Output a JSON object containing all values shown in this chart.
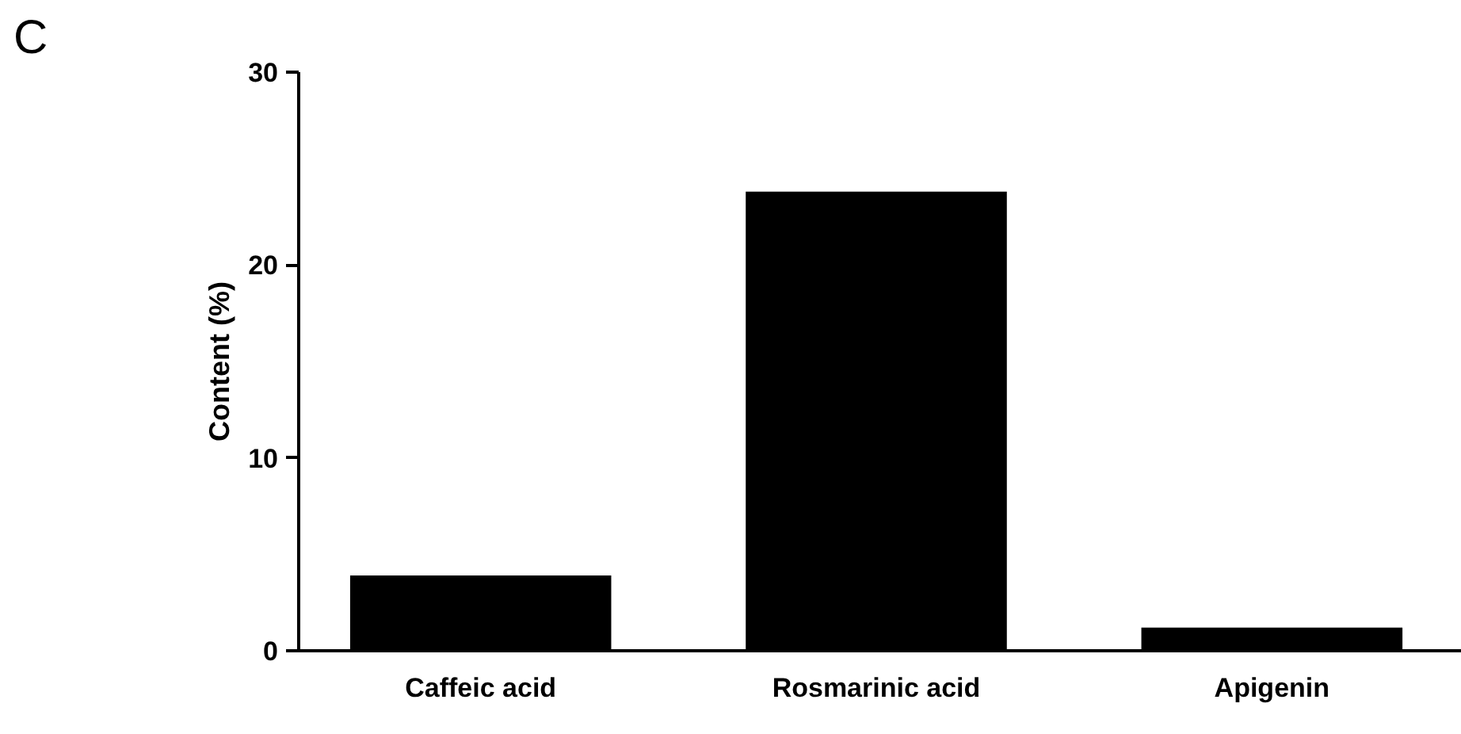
{
  "chart_data": {
    "type": "bar",
    "categories": [
      "Caffeic acid",
      "Rosmarinic acid",
      "Apigenin"
    ],
    "values": [
      3.9,
      23.8,
      1.2
    ],
    "color": "#000000",
    "ylabel": "Content (%)",
    "ylim": [
      0,
      30
    ],
    "yticks": [
      0,
      10,
      20,
      30
    ],
    "annotations": [
      "C"
    ]
  }
}
